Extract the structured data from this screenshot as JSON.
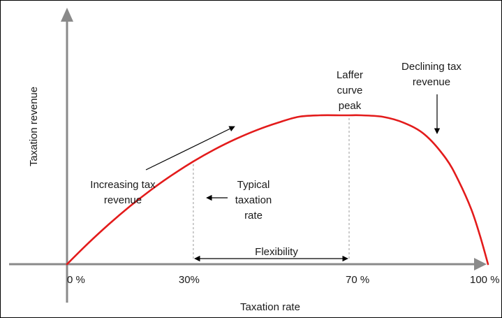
{
  "chart_data": {
    "type": "line",
    "xlabel": "Taxation rate",
    "ylabel": "Taxation revenue",
    "x_ticks": [
      {
        "value": 0,
        "label": "0 %"
      },
      {
        "value": 30,
        "label": "30%"
      },
      {
        "value": 70,
        "label": "70 %"
      },
      {
        "value": 100,
        "label": "100 %"
      }
    ],
    "xlim": [
      0,
      100
    ],
    "ylim": [
      0,
      1
    ],
    "grid": false,
    "series": [
      {
        "color": "#e31b1b",
        "x": [
          0,
          5,
          10,
          15,
          20,
          25,
          30,
          35,
          40,
          45,
          50,
          55,
          60,
          65,
          67,
          70,
          75,
          80,
          85,
          90,
          93,
          96,
          98,
          100
        ],
        "y": [
          0,
          0.14,
          0.27,
          0.39,
          0.5,
          0.6,
          0.69,
          0.77,
          0.84,
          0.9,
          0.95,
          0.99,
          1.0,
          1.0,
          1.0,
          1.0,
          0.99,
          0.95,
          0.87,
          0.71,
          0.56,
          0.37,
          0.2,
          0
        ]
      }
    ],
    "annotations": {
      "increasing_line1": "Increasing tax",
      "increasing_line2": "revenue",
      "typical_line1": "Typical",
      "typical_line2": "taxation",
      "typical_line3": "rate",
      "peak_line1": "Laffer",
      "peak_line2": "curve",
      "peak_line3": "peak",
      "declining_line1": "Declining tax",
      "declining_line2": "revenue",
      "flexibility": "Flexibility"
    },
    "guides": {
      "typical_rate": 30,
      "peak_rate": 67,
      "flexibility_range": [
        30,
        67
      ]
    }
  },
  "colors": {
    "curve": "#e31b1b",
    "axes": "#8a8a8a",
    "text": "#1a1a1a"
  }
}
